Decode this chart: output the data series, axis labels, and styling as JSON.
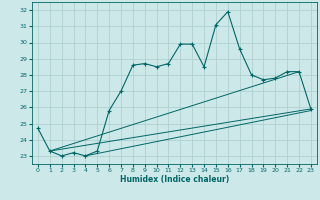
{
  "xlabel": "Humidex (Indice chaleur)",
  "background_color": "#cde8e8",
  "line_color": "#006666",
  "grid_color": "#b0d0d0",
  "xlim": [
    -0.5,
    23.5
  ],
  "ylim": [
    22.5,
    32.5
  ],
  "yticks": [
    23,
    24,
    25,
    26,
    27,
    28,
    29,
    30,
    31,
    32
  ],
  "xticks": [
    0,
    1,
    2,
    3,
    4,
    5,
    6,
    7,
    8,
    9,
    10,
    11,
    12,
    13,
    14,
    15,
    16,
    17,
    18,
    19,
    20,
    21,
    22,
    23
  ],
  "series1_x": [
    0,
    1,
    2,
    3,
    4,
    5,
    6,
    7,
    8,
    9,
    10,
    11,
    12,
    13,
    14,
    15,
    16,
    17,
    18,
    19,
    20,
    21,
    22,
    23
  ],
  "series1_y": [
    24.7,
    23.3,
    23.0,
    23.2,
    23.0,
    23.3,
    25.8,
    27.0,
    28.6,
    28.7,
    28.5,
    28.7,
    29.9,
    29.9,
    28.5,
    31.1,
    31.9,
    29.6,
    28.0,
    27.7,
    27.8,
    28.2,
    28.2,
    25.9
  ],
  "line2_x": [
    1,
    22
  ],
  "line2_y": [
    23.3,
    28.2
  ],
  "line3_x": [
    1,
    23
  ],
  "line3_y": [
    23.3,
    25.9
  ],
  "line4_x": [
    4,
    23
  ],
  "line4_y": [
    23.0,
    25.8
  ]
}
